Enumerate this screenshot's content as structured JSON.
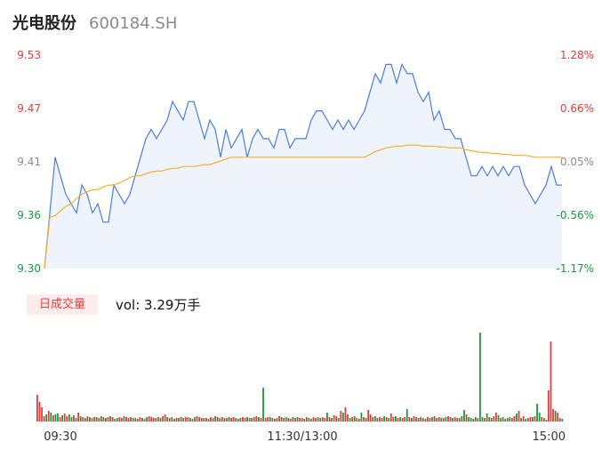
{
  "header": {
    "name": "光电股份",
    "code": "600184.SH"
  },
  "colors": {
    "up": "#e83a3a",
    "down": "#1a9a3a",
    "flat": "#8a8a8a",
    "price_line": "#4a7fe0",
    "avg_line": "#f0b030",
    "area_fill": "#eef3fc"
  },
  "chart_data": {
    "type": "line",
    "title": "",
    "price_axis": {
      "min": 9.3,
      "max": 9.53,
      "ticks": [
        "9.53",
        "9.47",
        "9.41",
        "9.36",
        "9.30"
      ]
    },
    "pct_axis": {
      "ticks": [
        "1.28%",
        "0.66%",
        "0.05%",
        "-0.56%",
        "-1.17%"
      ]
    },
    "time_labels": [
      "09:30",
      "11:30/13:00",
      "15:00"
    ],
    "series": [
      {
        "name": "",
        "values": [
          9.3,
          9.36,
          9.42,
          9.4,
          9.38,
          9.37,
          9.36,
          9.39,
          9.38,
          9.36,
          9.37,
          9.35,
          9.35,
          9.39,
          9.38,
          9.37,
          9.38,
          9.4,
          9.42,
          9.44,
          9.45,
          9.44,
          9.45,
          9.46,
          9.48,
          9.47,
          9.46,
          9.48,
          9.48,
          9.46,
          9.44,
          9.46,
          9.45,
          9.42,
          9.45,
          9.43,
          9.44,
          9.45,
          9.42,
          9.44,
          9.45,
          9.44,
          9.44,
          9.43,
          9.45,
          9.45,
          9.43,
          9.44,
          9.44,
          9.44,
          9.46,
          9.47,
          9.47,
          9.46,
          9.45,
          9.46,
          9.45,
          9.46,
          9.45,
          9.46,
          9.47,
          9.49,
          9.51,
          9.5,
          9.52,
          9.52,
          9.5,
          9.52,
          9.51,
          9.51,
          9.49,
          9.48,
          9.49,
          9.46,
          9.47,
          9.45,
          9.45,
          9.44,
          9.44,
          9.42,
          9.4,
          9.4,
          9.41,
          9.4,
          9.41,
          9.4,
          9.41,
          9.4,
          9.41,
          9.41,
          9.39,
          9.38,
          9.37,
          9.38,
          9.39,
          9.41,
          9.39,
          9.39
        ]
      },
      {
        "name": "",
        "values": [
          9.3,
          9.355,
          9.357,
          9.362,
          9.367,
          9.37,
          9.375,
          9.38,
          9.383,
          9.385,
          9.385,
          9.388,
          9.39,
          9.39,
          9.392,
          9.395,
          9.398,
          9.4,
          9.4,
          9.402,
          9.404,
          9.405,
          9.405,
          9.407,
          9.408,
          9.408,
          9.41,
          9.41,
          9.41,
          9.411,
          9.412,
          9.412,
          9.414,
          9.416,
          9.418,
          9.42,
          9.42,
          9.42,
          9.42,
          9.42,
          9.42,
          9.42,
          9.42,
          9.42,
          9.42,
          9.42,
          9.42,
          9.42,
          9.42,
          9.42,
          9.42,
          9.42,
          9.42,
          9.42,
          9.42,
          9.42,
          9.42,
          9.42,
          9.42,
          9.42,
          9.42,
          9.423,
          9.426,
          9.428,
          9.43,
          9.431,
          9.432,
          9.432,
          9.433,
          9.433,
          9.433,
          9.432,
          9.432,
          9.432,
          9.431,
          9.431,
          9.43,
          9.43,
          9.43,
          9.428,
          9.427,
          9.426,
          9.425,
          9.425,
          9.424,
          9.424,
          9.423,
          9.423,
          9.422,
          9.422,
          9.422,
          9.421,
          9.42,
          9.42,
          9.42,
          9.42,
          9.42,
          9.42
        ]
      }
    ],
    "volume": {
      "label": "日成交量",
      "value_text": "vol: 3.29万手",
      "values": [
        30,
        22,
        16,
        6,
        8,
        12,
        10,
        7,
        8,
        9,
        5,
        7,
        9,
        6,
        8,
        5,
        7,
        4,
        10,
        6,
        5,
        4,
        6,
        5,
        4,
        5,
        5,
        4,
        6,
        5,
        4,
        5,
        6,
        5,
        3,
        4,
        5,
        4,
        6,
        5,
        4,
        5,
        4,
        4,
        3,
        5,
        4,
        3,
        5,
        6,
        5,
        4,
        4,
        5,
        4,
        6,
        8,
        5,
        4,
        5,
        3,
        4,
        4,
        5,
        4,
        5,
        5,
        4,
        3,
        5,
        6,
        5,
        4,
        4,
        4,
        3,
        5,
        4,
        6,
        5,
        4,
        5,
        4,
        4,
        5,
        4,
        5,
        4,
        3,
        4,
        5,
        4,
        5,
        4,
        4,
        5,
        6,
        5,
        4,
        38,
        4,
        5,
        5,
        4,
        3,
        4,
        6,
        5,
        4,
        5,
        4,
        3,
        5,
        4,
        5,
        4,
        4,
        3,
        5,
        4,
        3,
        5,
        4,
        5,
        4,
        5,
        4,
        10,
        5,
        4,
        7,
        6,
        4,
        12,
        10,
        16,
        8,
        4,
        5,
        6,
        4,
        3,
        10,
        5,
        4,
        13,
        8,
        5,
        6,
        4,
        5,
        4,
        6,
        5,
        4,
        9,
        5,
        6,
        4,
        5,
        4,
        5,
        14,
        5,
        4,
        6,
        5,
        4,
        5,
        4,
        3,
        5,
        4,
        5,
        6,
        4,
        5,
        4,
        4,
        5,
        6,
        5,
        4,
        5,
        4,
        4,
        6,
        13,
        8,
        5,
        4,
        3,
        5,
        4,
        100,
        5,
        4,
        9,
        5,
        4,
        6,
        10,
        7,
        4,
        5,
        3,
        4,
        5,
        4,
        6,
        9,
        12,
        4,
        6,
        3,
        4,
        5,
        5,
        6,
        20,
        10,
        5,
        4,
        2,
        35,
        90,
        14,
        12,
        10,
        4,
        3
      ],
      "up_mask": [
        1,
        1,
        1,
        1,
        0,
        1,
        0,
        1,
        0,
        0,
        1,
        0,
        1,
        1,
        0,
        1,
        0,
        1,
        1,
        0,
        1,
        0,
        1,
        0,
        1,
        1,
        0,
        1,
        0,
        1,
        0,
        1,
        1,
        0,
        1,
        0,
        1,
        1,
        0,
        1,
        1,
        0,
        1,
        0,
        1,
        1,
        0,
        1,
        0,
        1,
        1,
        1,
        0,
        1,
        0,
        1,
        1,
        0,
        1,
        0,
        1,
        1,
        0,
        1,
        0,
        1,
        1,
        0,
        1,
        0,
        1,
        1,
        0,
        1,
        0,
        1,
        1,
        0,
        1,
        0,
        1,
        1,
        0,
        1,
        0,
        1,
        1,
        0,
        1,
        0,
        1,
        1,
        0,
        1,
        0,
        1,
        1,
        0,
        1,
        0,
        1,
        1,
        0,
        1,
        0,
        1,
        1,
        0,
        1,
        0,
        1,
        1,
        0,
        1,
        0,
        1,
        1,
        0,
        1,
        0,
        1,
        1,
        0,
        1,
        0,
        1,
        1,
        0,
        1,
        0,
        1,
        1,
        0,
        1,
        0,
        1,
        1,
        0,
        1,
        0,
        1,
        1,
        0,
        1,
        0,
        1,
        1,
        0,
        1,
        0,
        1,
        1,
        0,
        1,
        0,
        1,
        1,
        0,
        1,
        0,
        1,
        1,
        0,
        1,
        0,
        1,
        1,
        0,
        1,
        0,
        1,
        1,
        0,
        1,
        0,
        1,
        1,
        0,
        1,
        0,
        1,
        1,
        0,
        1,
        0,
        1,
        0,
        0,
        1,
        0,
        0,
        1,
        0,
        1,
        0,
        0,
        1,
        0,
        1,
        0,
        1,
        1,
        0,
        1,
        0,
        0,
        1,
        0,
        1,
        1,
        0,
        1,
        0,
        1,
        0,
        1,
        1,
        0,
        1,
        0,
        0,
        1,
        0,
        1,
        1,
        1,
        1,
        0,
        1,
        1,
        0,
        1
      ]
    }
  }
}
